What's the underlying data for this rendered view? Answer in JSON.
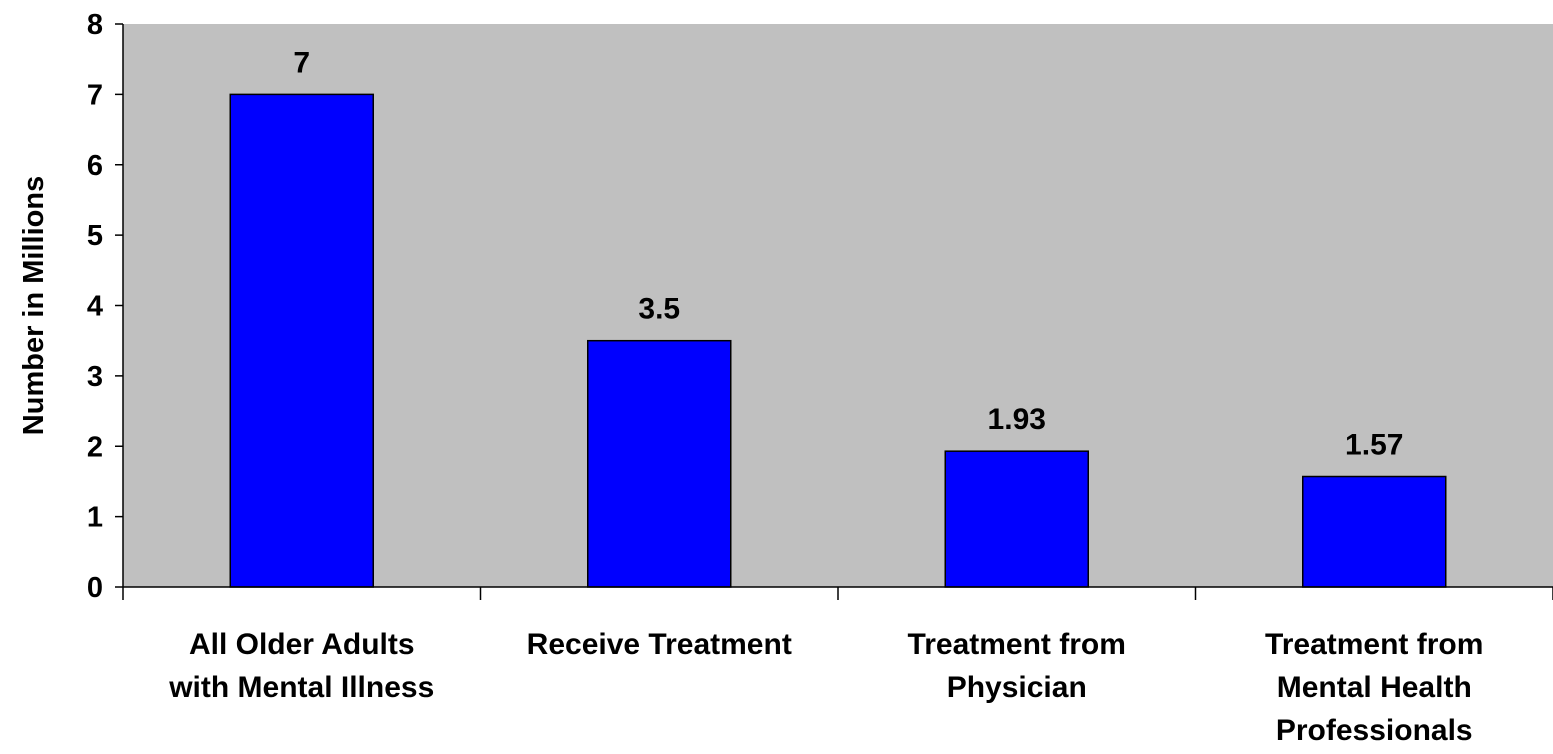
{
  "chart_data": {
    "type": "bar",
    "title": "",
    "xlabel": "",
    "ylabel": "Number in Millions",
    "ylim": [
      0,
      8
    ],
    "yticks": [
      "0",
      "1",
      "2",
      "3",
      "4",
      "5",
      "6",
      "7",
      "8"
    ],
    "categories": [
      [
        "All Older Adults",
        "with Mental Illness"
      ],
      [
        "Receive Treatment"
      ],
      [
        "Treatment from",
        "Physician"
      ],
      [
        "Treatment from",
        "Mental Health",
        "Professionals"
      ]
    ],
    "values": [
      7,
      3.5,
      1.93,
      1.57
    ],
    "value_labels": [
      "7",
      "3.5",
      "1.93",
      "1.57"
    ],
    "grid": false,
    "legend": "none",
    "colors": {
      "bar": "#0000ff",
      "bar_border": "#000000",
      "plot_background": "#c0c0c0",
      "axis": "#000000"
    }
  }
}
